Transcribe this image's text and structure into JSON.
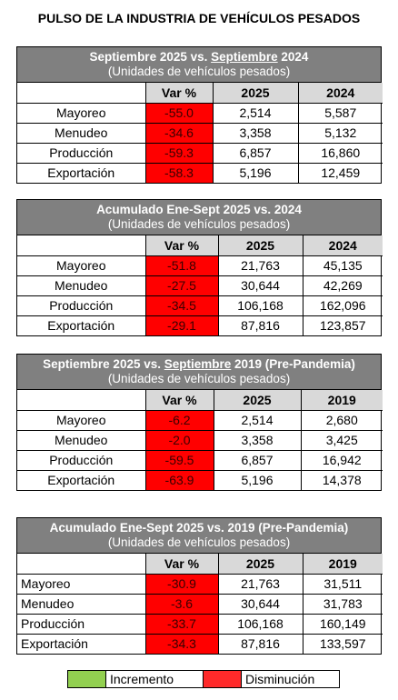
{
  "title": "PULSO DE LA INDUSTRIA DE VEHÍCULOS PESADOS",
  "col_var": "Var %",
  "rows_labels": [
    "Mayoreo",
    "Menudeo",
    "Producción",
    "Exportación"
  ],
  "tables": [
    {
      "heading_pre": "Septiembre 2025 vs. ",
      "heading_underlined": "Septiembre",
      "heading_post": " 2024",
      "subheading": "(Unidades de vehículos pesados)",
      "col_a": "2025",
      "col_b": "2024",
      "rows": [
        {
          "var": "-55.0",
          "a": "2,514",
          "b": "5,587"
        },
        {
          "var": "-34.6",
          "a": "3,358",
          "b": "5,132"
        },
        {
          "var": "-59.3",
          "a": "6,857",
          "b": "16,860"
        },
        {
          "var": "-58.3",
          "a": "5,196",
          "b": "12,459"
        }
      ]
    },
    {
      "heading_pre": "Acumulado Ene-Sept 2025 vs. 2024",
      "heading_underlined": "",
      "heading_post": "",
      "subheading": "(Unidades de vehículos pesados)",
      "col_a": "2025",
      "col_b": "2024",
      "rows": [
        {
          "var": "-51.8",
          "a": "21,763",
          "b": "45,135"
        },
        {
          "var": "-27.5",
          "a": "30,644",
          "b": "42,269"
        },
        {
          "var": "-34.5",
          "a": "106,168",
          "b": "162,096"
        },
        {
          "var": "-29.1",
          "a": "87,816",
          "b": "123,857"
        }
      ]
    },
    {
      "heading_pre": "Septiembre 2025 vs. ",
      "heading_underlined": "Septiembre",
      "heading_post": " 2019 (Pre-Pandemia)",
      "subheading": "(Unidades de vehículos pesados)",
      "col_a": "2025",
      "col_b": "2019",
      "rows": [
        {
          "var": "-6.2",
          "a": "2,514",
          "b": "2,680"
        },
        {
          "var": "-2.0",
          "a": "3,358",
          "b": "3,425"
        },
        {
          "var": "-59.5",
          "a": "6,857",
          "b": "16,942"
        },
        {
          "var": "-63.9",
          "a": "5,196",
          "b": "14,378"
        }
      ]
    },
    {
      "heading_pre": "Acumulado Ene-Sept 2025 vs. 2019 (Pre-Pandemia)",
      "heading_underlined": "",
      "heading_post": "",
      "subheading": "(Unidades de vehículos pesados)",
      "col_a": "2025",
      "col_b": "2019",
      "rows": [
        {
          "var": "-30.9",
          "a": "21,763",
          "b": "31,511"
        },
        {
          "var": "-3.6",
          "a": "30,644",
          "b": "31,783"
        },
        {
          "var": "-33.7",
          "a": "106,168",
          "b": "160,149"
        },
        {
          "var": "-34.3",
          "a": "87,816",
          "b": "133,597"
        }
      ]
    }
  ],
  "legend": {
    "increase_label": "Incremento",
    "increase_color": "#92d050",
    "decrease_label": "Disminución",
    "decrease_color": "#ff2a2a"
  }
}
